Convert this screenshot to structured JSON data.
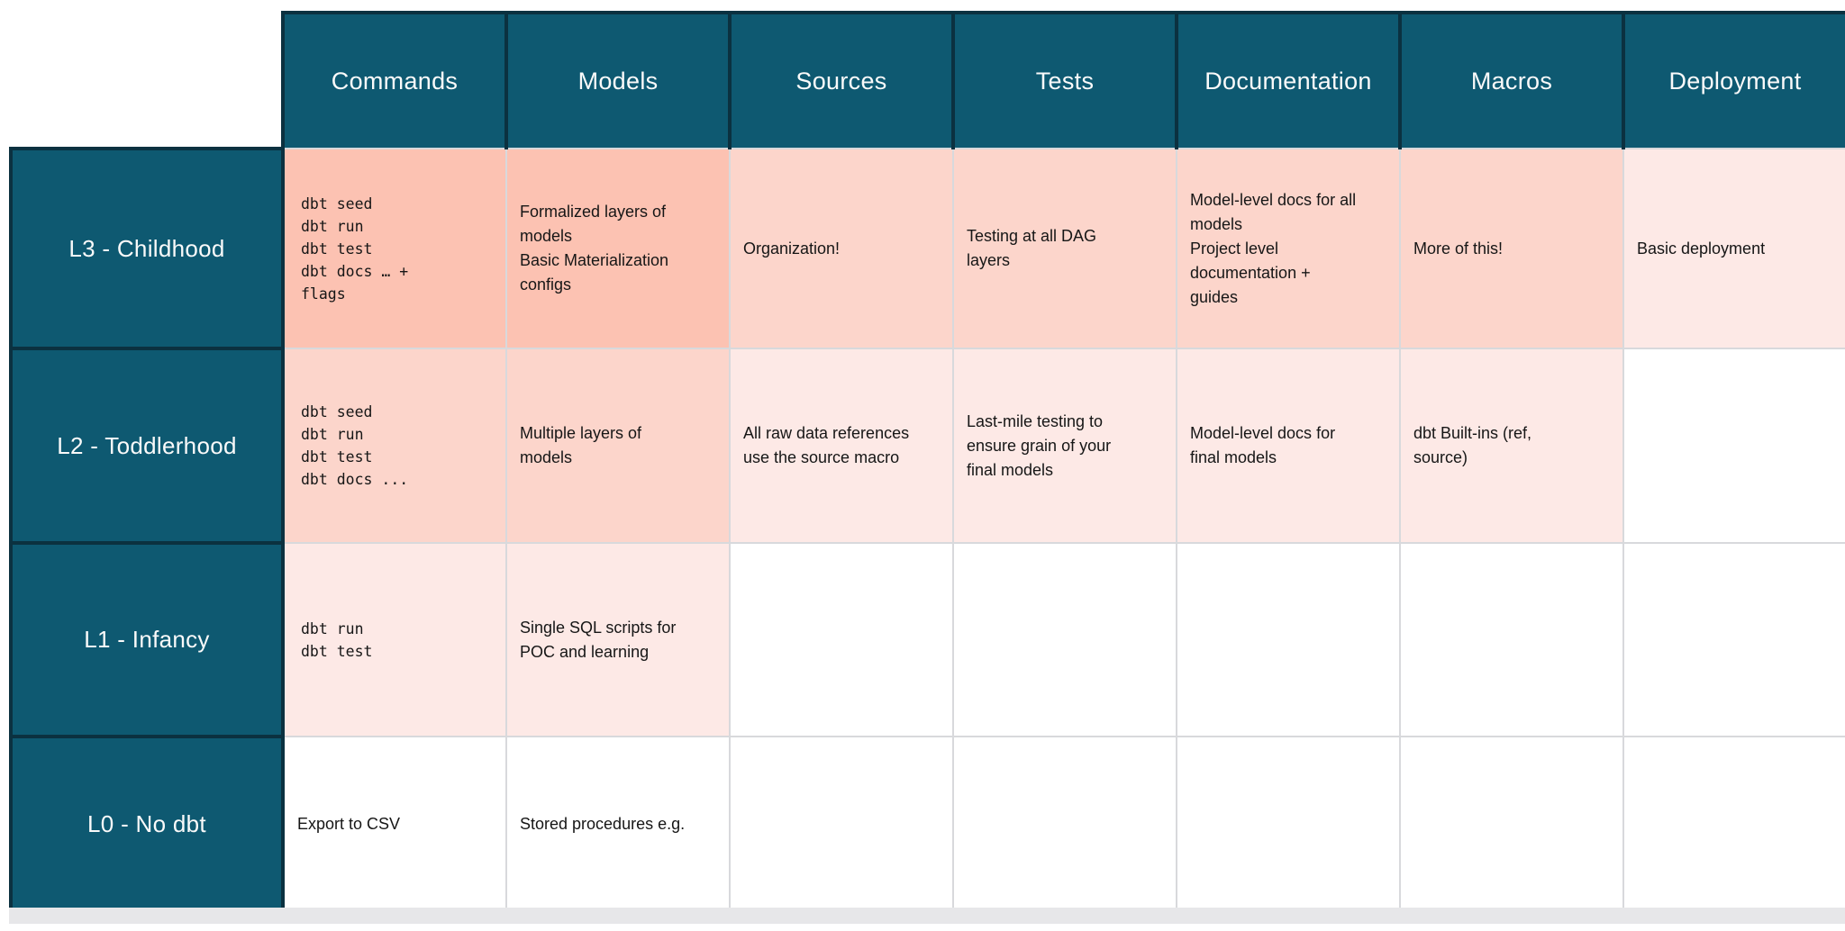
{
  "colors": {
    "header_bg": "#0E5971",
    "header_border": "#0B3140",
    "grid_border": "#D8D9DC",
    "cell_strong": "#FCC2B2",
    "cell_medium": "#FCD5CB",
    "cell_light": "#FDE9E6",
    "cell_empty": "#FFFFFF",
    "header_text": "#FAFAFA",
    "cell_text": "#161616",
    "bottom_bar": "#E7E7E9"
  },
  "table": {
    "column_headers": [
      "Commands",
      "Models",
      "Sources",
      "Tests",
      "Documentation",
      "Macros",
      "Deployment"
    ],
    "rows": [
      {
        "label": "L3 - Childhood",
        "cells": [
          {
            "text": "dbt seed\ndbt run\ndbt test\ndbt docs … +\nflags",
            "style": "mono",
            "tone": "strong"
          },
          {
            "text": "Formalized layers of\nmodels\nBasic Materialization\nconfigs",
            "style": "sans",
            "tone": "strong"
          },
          {
            "text": "Organization!",
            "style": "sans",
            "tone": "medium"
          },
          {
            "text": "Testing at all DAG\nlayers",
            "style": "sans",
            "tone": "medium"
          },
          {
            "text": "Model-level docs for all\nmodels\nProject level\ndocumentation +\nguides",
            "style": "sans",
            "tone": "medium"
          },
          {
            "text": "More of this!",
            "style": "sans",
            "tone": "medium"
          },
          {
            "text": "Basic deployment",
            "style": "sans",
            "tone": "light"
          }
        ]
      },
      {
        "label": "L2 - Toddlerhood",
        "cells": [
          {
            "text": "dbt seed\ndbt run\ndbt test\ndbt docs ...",
            "style": "mono",
            "tone": "medium"
          },
          {
            "text": "Multiple layers of\nmodels",
            "style": "sans",
            "tone": "medium"
          },
          {
            "text": "All raw data references\nuse the source macro",
            "style": "sans",
            "tone": "light"
          },
          {
            "text": "Last-mile testing to\nensure grain of your\nfinal models",
            "style": "sans",
            "tone": "light"
          },
          {
            "text": "Model-level docs for\nfinal models",
            "style": "sans",
            "tone": "light"
          },
          {
            "text": "dbt Built-ins (ref,\nsource)",
            "style": "sans",
            "tone": "light"
          },
          {
            "text": "",
            "style": "sans",
            "tone": "empty"
          }
        ]
      },
      {
        "label": "L1 - Infancy",
        "cells": [
          {
            "text": "dbt run\ndbt test",
            "style": "mono",
            "tone": "light"
          },
          {
            "text": "Single SQL scripts for\nPOC and learning",
            "style": "sans",
            "tone": "light"
          },
          {
            "text": "",
            "style": "sans",
            "tone": "empty"
          },
          {
            "text": "",
            "style": "sans",
            "tone": "empty"
          },
          {
            "text": "",
            "style": "sans",
            "tone": "empty"
          },
          {
            "text": "",
            "style": "sans",
            "tone": "empty"
          },
          {
            "text": "",
            "style": "sans",
            "tone": "empty"
          }
        ]
      },
      {
        "label": "L0 - No dbt",
        "cells": [
          {
            "text": "Export to CSV",
            "style": "sans",
            "tone": "empty"
          },
          {
            "text": "Stored procedures e.g.",
            "style": "sans",
            "tone": "empty"
          },
          {
            "text": "",
            "style": "sans",
            "tone": "empty"
          },
          {
            "text": "",
            "style": "sans",
            "tone": "empty"
          },
          {
            "text": "",
            "style": "sans",
            "tone": "empty"
          },
          {
            "text": "",
            "style": "sans",
            "tone": "empty"
          },
          {
            "text": "",
            "style": "sans",
            "tone": "empty"
          }
        ]
      }
    ]
  }
}
